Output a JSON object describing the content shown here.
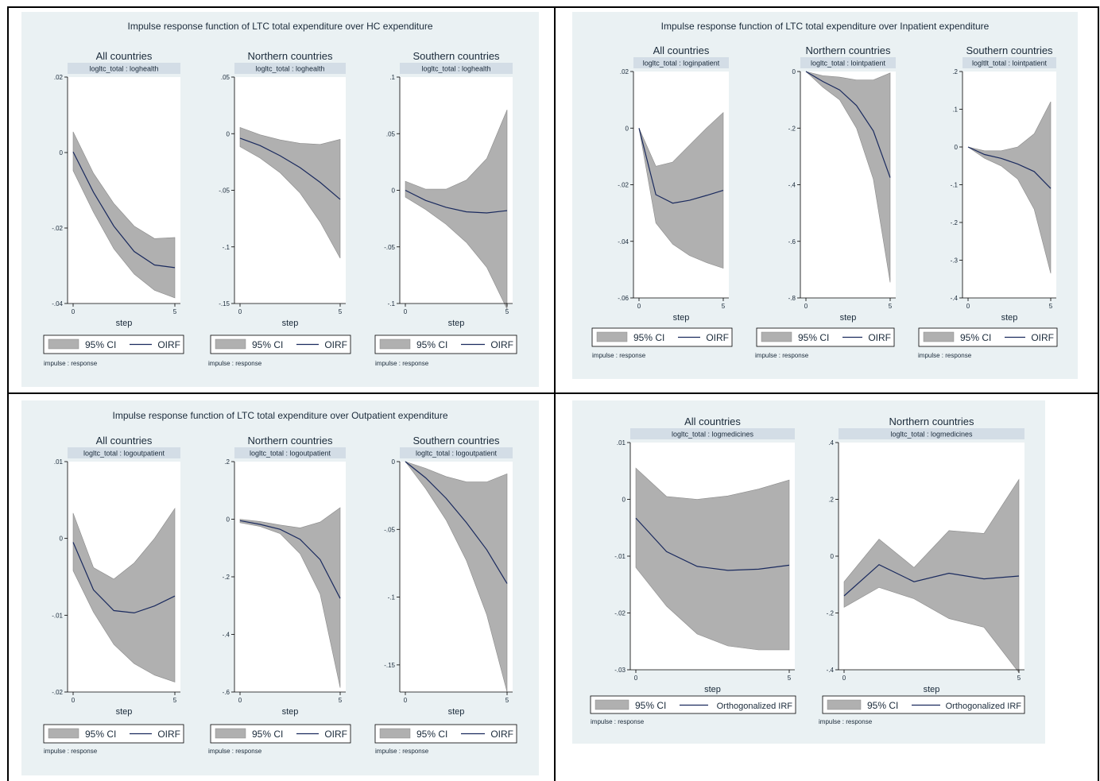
{
  "colors": {
    "background": "#eaf1f3",
    "ci_fill": "#b0b0b0",
    "ci_stroke": "#8a8a8a",
    "irf_line": "#1a2a5e",
    "strip": "#d3dde6",
    "text": "#1a2a3a"
  },
  "shared": {
    "xlabel": "step",
    "legend_ci": "95% CI",
    "note": "impulse : response",
    "xticks": [
      "0",
      "5"
    ]
  },
  "chart_data": [
    {
      "type": "area",
      "title": "Impulse response function of LTC total expenditure over HC expenditure",
      "irf_label": "OIRF",
      "panels": [
        {
          "header": "All countries",
          "strip": "logltc_total : loghealth",
          "ylim": [
            -0.04,
            0.02
          ],
          "yticks": [
            0.02,
            0,
            -0.02,
            -0.04
          ],
          "yticklabels": [
            ".02",
            "0",
            "-.02",
            "-.04"
          ],
          "x": [
            0,
            1,
            2,
            3,
            4,
            5
          ],
          "irf": [
            0.0002,
            -0.0105,
            -0.0195,
            -0.0262,
            -0.0298,
            -0.0305
          ],
          "lower": [
            -0.0048,
            -0.0158,
            -0.0255,
            -0.0322,
            -0.0365,
            -0.0385
          ],
          "upper": [
            0.0055,
            -0.0055,
            -0.0135,
            -0.0195,
            -0.0228,
            -0.0225
          ]
        },
        {
          "header": "Northern countries",
          "strip": "logltc_total : loghealth",
          "ylim": [
            -0.15,
            0.05
          ],
          "yticks": [
            0.05,
            0,
            -0.05,
            -0.1,
            -0.15
          ],
          "yticklabels": [
            ".05",
            "0",
            "-.05",
            "-.1",
            "-.15"
          ],
          "x": [
            0,
            1,
            2,
            3,
            4,
            5
          ],
          "irf": [
            -0.004,
            -0.0105,
            -0.0195,
            -0.03,
            -0.043,
            -0.058
          ],
          "lower": [
            -0.0115,
            -0.0215,
            -0.0345,
            -0.0525,
            -0.078,
            -0.11
          ],
          "upper": [
            0.0055,
            -0.001,
            -0.0055,
            -0.0085,
            -0.0095,
            -0.005
          ]
        },
        {
          "header": "Southern countries",
          "strip": "logltc_total : loghealth",
          "ylim": [
            -0.1,
            0.1
          ],
          "yticks": [
            0.1,
            0.05,
            0,
            -0.05,
            -0.1
          ],
          "yticklabels": [
            ".1",
            ".05",
            "0",
            "-.05",
            "-.1"
          ],
          "x": [
            0,
            1,
            2,
            3,
            4,
            5
          ],
          "irf": [
            0.0,
            -0.009,
            -0.015,
            -0.019,
            -0.02,
            -0.018
          ],
          "lower": [
            -0.006,
            -0.017,
            -0.03,
            -0.046,
            -0.068,
            -0.105
          ],
          "upper": [
            0.008,
            0.001,
            0.001,
            0.009,
            0.028,
            0.071
          ]
        }
      ]
    },
    {
      "type": "area",
      "title": "Impulse response function of LTC total expenditure over Inpatient expenditure",
      "irf_label": "OIRF",
      "panels": [
        {
          "header": "All countries",
          "strip": "logltc_total : loginpatient",
          "ylim": [
            -0.06,
            0.02
          ],
          "yticks": [
            0.02,
            0,
            -0.02,
            -0.04,
            -0.06
          ],
          "yticklabels": [
            ".02",
            "0",
            "-.02",
            "-.04",
            "-.06"
          ],
          "x": [
            0,
            1,
            2,
            3,
            4,
            5
          ],
          "irf": [
            0.0,
            -0.0235,
            -0.0265,
            -0.0255,
            -0.0238,
            -0.022
          ],
          "lower": [
            0.0,
            -0.0335,
            -0.041,
            -0.045,
            -0.0475,
            -0.0495
          ],
          "upper": [
            0.0,
            -0.0135,
            -0.012,
            -0.006,
            0.0,
            0.0055
          ]
        },
        {
          "header": "Northern countries",
          "strip": "logltc_total : lointpatient",
          "ylim": [
            -0.8,
            0.0
          ],
          "yticks": [
            0,
            -0.2,
            -0.4,
            -0.6,
            -0.8
          ],
          "yticklabels": [
            "0",
            "-.2",
            "-.4",
            "-.6",
            "-.8"
          ],
          "x": [
            0,
            1,
            2,
            3,
            4,
            5
          ],
          "irf": [
            0.0,
            -0.035,
            -0.065,
            -0.12,
            -0.21,
            -0.375
          ],
          "lower": [
            0.0,
            -0.055,
            -0.1,
            -0.2,
            -0.38,
            -0.745
          ],
          "upper": [
            0.0,
            -0.015,
            -0.02,
            -0.03,
            -0.03,
            -0.005
          ]
        },
        {
          "header": "Southern countries",
          "strip": "logltlt_total : lointpatient",
          "ylim": [
            -0.4,
            0.2
          ],
          "yticks": [
            0.2,
            0.1,
            0,
            -0.1,
            -0.2,
            -0.3,
            -0.4
          ],
          "yticklabels": [
            ".2",
            ".1",
            "0",
            "-.1",
            "-.2",
            "-.3",
            "-.4"
          ],
          "x": [
            0,
            1,
            2,
            3,
            4,
            5
          ],
          "irf": [
            0.0,
            -0.02,
            -0.03,
            -0.045,
            -0.065,
            -0.11
          ],
          "lower": [
            0.0,
            -0.03,
            -0.05,
            -0.085,
            -0.165,
            -0.335
          ],
          "upper": [
            0.0,
            -0.01,
            -0.01,
            0.0,
            0.035,
            0.12
          ]
        }
      ]
    },
    {
      "type": "area",
      "title": "Impulse response function of LTC total expenditure over Outpatient expenditure",
      "irf_label": "OIRF",
      "panels": [
        {
          "header": "All countries",
          "strip": "logltc_total : logoutpatient",
          "ylim": [
            -0.02,
            0.01
          ],
          "yticks": [
            0.01,
            0,
            -0.01,
            -0.02
          ],
          "yticklabels": [
            ".01",
            "0",
            "-.01",
            "-.02"
          ],
          "x": [
            0,
            1,
            2,
            3,
            4,
            5
          ],
          "irf": [
            -0.0005,
            -0.0067,
            -0.0094,
            -0.0097,
            -0.0088,
            -0.0075
          ],
          "lower": [
            -0.0042,
            -0.0096,
            -0.0138,
            -0.0163,
            -0.0178,
            -0.0187
          ],
          "upper": [
            0.0033,
            -0.0038,
            -0.0053,
            -0.0032,
            0.0,
            0.0039
          ]
        },
        {
          "header": "Northern countries",
          "strip": "logltc_total : logoutpatient",
          "ylim": [
            -0.6,
            0.2
          ],
          "yticks": [
            0.2,
            0,
            -0.2,
            -0.4,
            -0.6
          ],
          "yticklabels": [
            ".2",
            "0",
            "-.2",
            "-.4",
            "-.6"
          ],
          "x": [
            0,
            1,
            2,
            3,
            4,
            5
          ],
          "irf": [
            -0.005,
            -0.018,
            -0.035,
            -0.07,
            -0.14,
            -0.275
          ],
          "lower": [
            -0.012,
            -0.025,
            -0.05,
            -0.12,
            -0.26,
            -0.585
          ],
          "upper": [
            0.0,
            -0.008,
            -0.02,
            -0.03,
            -0.01,
            0.04
          ]
        },
        {
          "header": "Southern countries",
          "strip": "logltc_total : logoutpatient",
          "ylim": [
            -0.17,
            0.0
          ],
          "yticks": [
            0,
            -0.05,
            -0.1,
            -0.15
          ],
          "yticklabels": [
            "0",
            "-.05",
            "-.1",
            "-.15"
          ],
          "x": [
            0,
            1,
            2,
            3,
            4,
            5
          ],
          "irf": [
            0.0,
            -0.012,
            -0.027,
            -0.045,
            -0.065,
            -0.09
          ],
          "lower": [
            0.0,
            -0.02,
            -0.043,
            -0.073,
            -0.113,
            -0.17
          ],
          "upper": [
            0.0,
            -0.005,
            -0.011,
            -0.015,
            -0.015,
            -0.009
          ]
        }
      ]
    },
    {
      "type": "area",
      "title": "",
      "irf_label": "Orthogonalized IRF",
      "panels": [
        {
          "header": "All countries",
          "strip": "logltc_total : logmedicines",
          "ylim": [
            -0.03,
            0.01
          ],
          "yticks": [
            0.01,
            0,
            -0.01,
            -0.02,
            -0.03
          ],
          "yticklabels": [
            ".01",
            "0",
            "-.01",
            "-.02",
            "-.03"
          ],
          "x": [
            0,
            1,
            2,
            3,
            4,
            5
          ],
          "irf": [
            -0.0033,
            -0.0092,
            -0.0118,
            -0.0125,
            -0.0123,
            -0.0116
          ],
          "lower": [
            -0.012,
            -0.0188,
            -0.0237,
            -0.0258,
            -0.0265,
            -0.0265
          ],
          "upper": [
            0.0055,
            0.0005,
            0.0,
            0.0006,
            0.0018,
            0.0034
          ]
        },
        {
          "header": "Northern countries",
          "strip": "logltc_total : logmedicines",
          "ylim": [
            -0.4,
            0.4
          ],
          "yticks": [
            0.4,
            0.2,
            0,
            -0.2,
            -0.4
          ],
          "yticklabels": [
            ".4",
            ".2",
            "0",
            "-.2",
            "-.4"
          ],
          "x": [
            0,
            1,
            2,
            3,
            4,
            5
          ],
          "irf": [
            -0.14,
            -0.03,
            -0.09,
            -0.06,
            -0.08,
            -0.07
          ],
          "lower": [
            -0.18,
            -0.11,
            -0.15,
            -0.22,
            -0.25,
            -0.41
          ],
          "upper": [
            -0.09,
            0.06,
            -0.04,
            0.09,
            0.08,
            0.27
          ]
        }
      ]
    }
  ]
}
